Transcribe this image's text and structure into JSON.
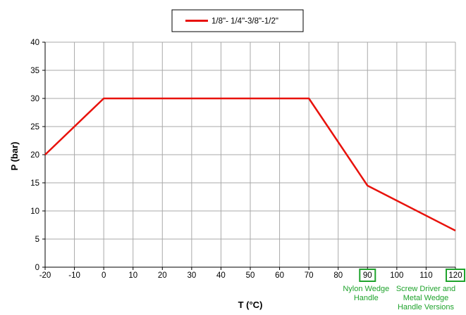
{
  "chart_data": {
    "type": "line",
    "xlabel": "T (°C)",
    "ylabel": "P (bar)",
    "xlim": [
      -20,
      120
    ],
    "ylim": [
      0,
      40
    ],
    "x_ticks": [
      -20,
      -10,
      0,
      10,
      20,
      30,
      40,
      50,
      60,
      70,
      80,
      90,
      100,
      110,
      120
    ],
    "y_ticks": [
      0,
      5,
      10,
      15,
      20,
      25,
      30,
      35,
      40
    ],
    "grid": true,
    "legend_position": "top-center",
    "series": [
      {
        "name": "1/8\"- 1/4\"-3/8\"-1/2\"",
        "color": "#e8120c",
        "x": [
          -20,
          0,
          70,
          90,
          120
        ],
        "y": [
          20,
          30,
          30,
          14.5,
          6.5
        ]
      }
    ],
    "highlighted_ticks": [
      90,
      120
    ],
    "highlight_color": "#1fa32c",
    "annotations": [
      {
        "x": 90,
        "lines": [
          "Nylon Wedge",
          "Handle"
        ]
      },
      {
        "x": 120,
        "lines": [
          "Screw Driver and",
          "Metal Wedge",
          "Handle Versions"
        ]
      }
    ]
  }
}
